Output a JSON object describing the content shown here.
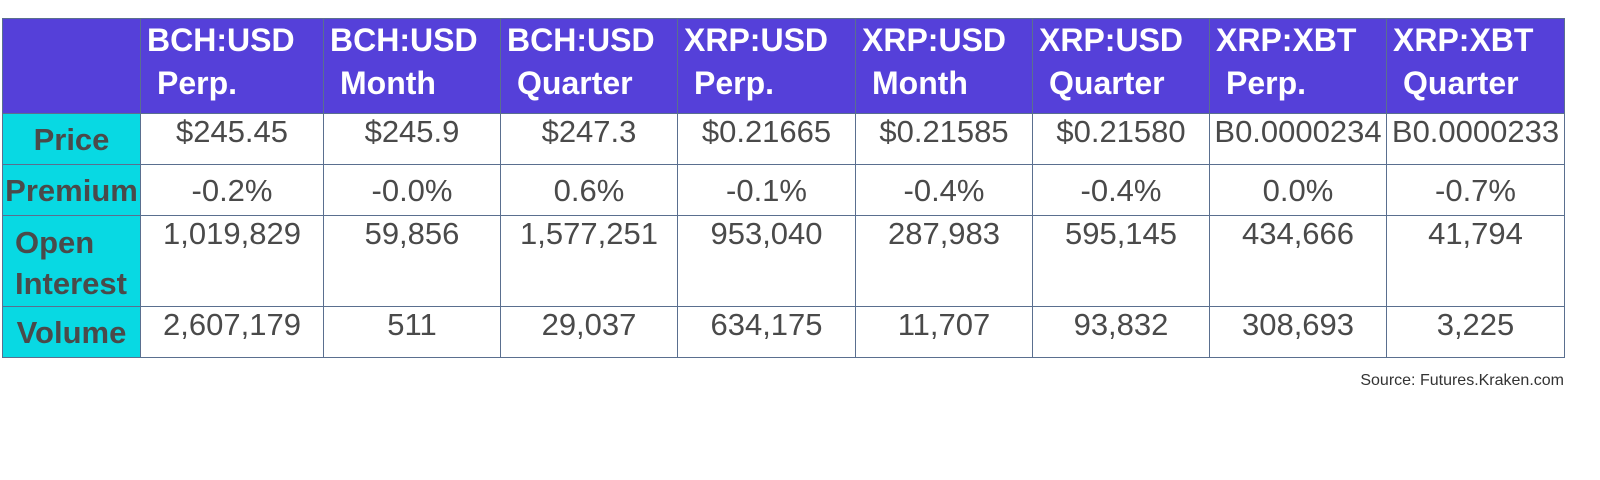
{
  "table": {
    "columns": [
      {
        "line1": "BCH:USD",
        "line2": "Perp."
      },
      {
        "line1": "BCH:USD",
        "line2": "Month"
      },
      {
        "line1": "BCH:USD",
        "line2": "Quarter"
      },
      {
        "line1": "XRP:USD",
        "line2": "Perp."
      },
      {
        "line1": "XRP:USD",
        "line2": "Month"
      },
      {
        "line1": "XRP:USD",
        "line2": "Quarter"
      },
      {
        "line1": "XRP:XBT",
        "line2": "Perp."
      },
      {
        "line1": "XRP:XBT",
        "line2": "Quarter"
      }
    ],
    "rows": [
      {
        "label": "Price",
        "values": [
          "$245.45",
          "$245.9",
          "$247.3",
          "$0.21665",
          "$0.21585",
          "$0.21580",
          "B0.0000234",
          "B0.0000233"
        ]
      },
      {
        "label": "Premium",
        "values": [
          "-0.2%",
          "-0.0%",
          "0.6%",
          "-0.1%",
          "-0.4%",
          "-0.4%",
          "0.0%",
          "-0.7%"
        ]
      },
      {
        "label_line1": "Open",
        "label_line2": "Interest",
        "values": [
          "1,019,829",
          "59,856",
          "1,577,251",
          "953,040",
          "287,983",
          "595,145",
          "434,666",
          "41,794"
        ]
      },
      {
        "label": "Volume",
        "values": [
          "2,607,179",
          "511",
          "29,037",
          "634,175",
          "11,707",
          "93,832",
          "308,693",
          "3,225"
        ]
      }
    ]
  },
  "source": "Source: Futures.Kraken.com",
  "colors": {
    "header_bg": "#5540d9",
    "row_header_bg": "#08d9e3",
    "text": "#4a4a4a",
    "border": "#5a6f8f"
  },
  "chart_data": {
    "type": "table",
    "columns": [
      "BCH:USD Perp.",
      "BCH:USD Month",
      "BCH:USD Quarter",
      "XRP:USD Perp.",
      "XRP:USD Month",
      "XRP:USD Quarter",
      "XRP:XBT Perp.",
      "XRP:XBT Quarter"
    ],
    "rows": [
      "Price",
      "Premium",
      "Open Interest",
      "Volume"
    ]
  }
}
